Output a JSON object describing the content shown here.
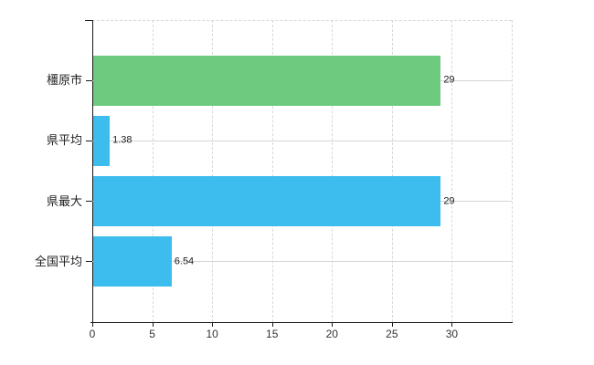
{
  "chart_data": {
    "type": "bar",
    "orientation": "horizontal",
    "title": "",
    "xlabel": "",
    "ylabel": "",
    "categories": [
      "橿原市",
      "県平均",
      "県最大",
      "全国平均"
    ],
    "values": [
      29,
      1.38,
      29,
      6.54
    ],
    "value_labels": [
      "29",
      "1.38",
      "29",
      "6.54"
    ],
    "bar_colors": [
      "#6dca7e",
      "#3dbdee",
      "#3dbdee",
      "#3dbdee"
    ],
    "x_ticks": [
      0,
      5,
      10,
      15,
      20,
      25,
      30
    ],
    "xlim": [
      0,
      35
    ],
    "grid": "vertical dashed gridlines at x ticks, light horizontal line through each category row, dashed top border",
    "legend": "none"
  },
  "colors": {
    "highlight_bar": "#6dca7e",
    "comparison_bar": "#3dbdee",
    "gridline": "#d8d8d8",
    "row_line": "#d5d5d5",
    "axis": "#1a1a1a",
    "text": "#222222",
    "background": "#ffffff"
  }
}
